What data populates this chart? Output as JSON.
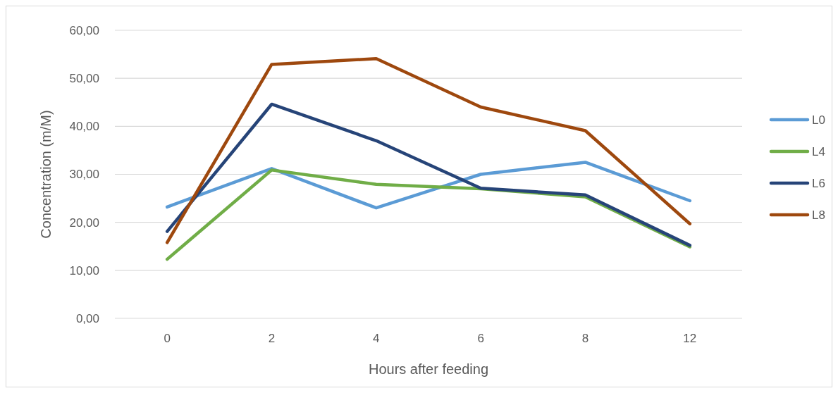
{
  "chart_data": {
    "type": "line",
    "xlabel": "Hours after feeding",
    "ylabel": "Concentration (m/M)",
    "categories": [
      "0",
      "2",
      "4",
      "6",
      "8",
      "12"
    ],
    "series": [
      {
        "name": "L0",
        "color": "#5b9bd5",
        "values": [
          23.2,
          31.2,
          23.0,
          30.0,
          32.5,
          24.5
        ]
      },
      {
        "name": "L4",
        "color": "#70ad47",
        "values": [
          12.3,
          30.9,
          27.9,
          27.0,
          25.3,
          14.9
        ]
      },
      {
        "name": "L6",
        "color": "#264478",
        "values": [
          18.1,
          44.6,
          37.0,
          27.1,
          25.7,
          15.2
        ]
      },
      {
        "name": "L8",
        "color": "#9e480e",
        "values": [
          15.8,
          52.9,
          54.1,
          44.0,
          39.1,
          19.7
        ]
      }
    ],
    "ylim": [
      0,
      60
    ],
    "yticks": [
      {
        "value": 0,
        "label": "0,00"
      },
      {
        "value": 10,
        "label": "10,00"
      },
      {
        "value": 20,
        "label": "20,00"
      },
      {
        "value": 30,
        "label": "30,00"
      },
      {
        "value": 40,
        "label": "40,00"
      },
      {
        "value": 50,
        "label": "50,00"
      },
      {
        "value": 60,
        "label": "60,00"
      }
    ],
    "grid": "y",
    "legend": "right",
    "marker": "none",
    "line_style": "solid"
  }
}
